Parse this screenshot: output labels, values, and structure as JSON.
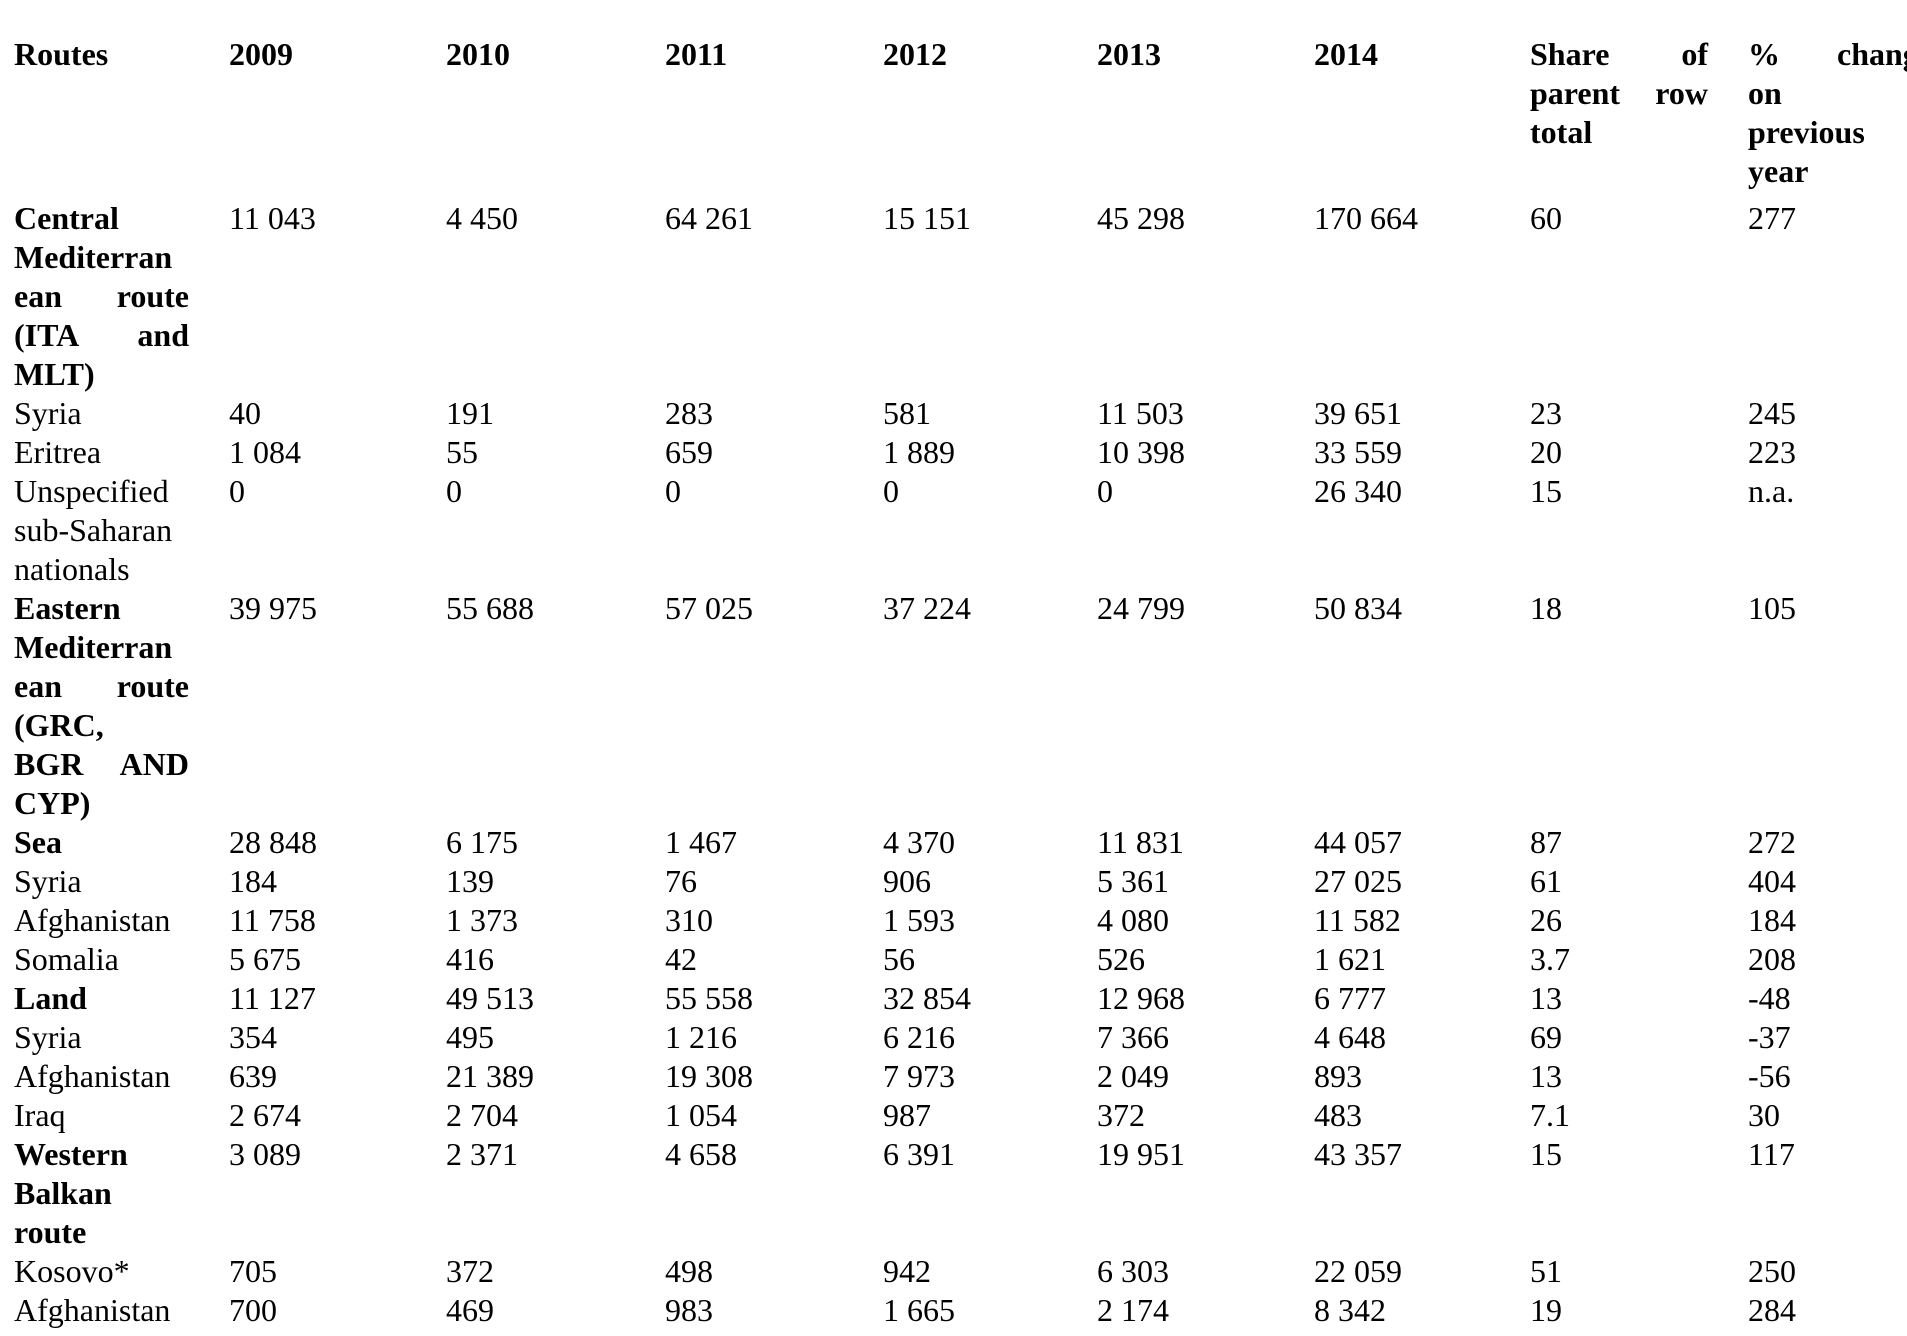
{
  "page": {
    "background_color": "#ffffff",
    "text_color": "#000000"
  },
  "table": {
    "columns": [
      "Routes",
      "2009",
      "2010",
      "2011",
      "2012",
      "2013",
      "2014",
      "Share of\nparent row\ntotal",
      "% change\non\nprevious\nyear"
    ],
    "rows": [
      {
        "route": "Central\nMediterran\nean route\n(ITA and\nMLT)",
        "bold": true,
        "values": [
          "11 043",
          "4 450",
          "64 261",
          "15 151",
          "45 298",
          "170 664",
          "60",
          "277"
        ]
      },
      {
        "route": "Syria",
        "bold": false,
        "values": [
          "40",
          "191",
          "283",
          "581",
          "11 503",
          "39 651",
          "23",
          "245"
        ]
      },
      {
        "route": "Eritrea",
        "bold": false,
        "values": [
          "1 084",
          "55",
          "659",
          "1 889",
          "10 398",
          "33 559",
          "20",
          "223"
        ]
      },
      {
        "route": "Unspecified\nsub-Saharan\nnationals",
        "bold": false,
        "values": [
          "0",
          "0",
          "0",
          "0",
          "0",
          "26 340",
          "15",
          "n.a."
        ]
      },
      {
        "route": "Eastern\nMediterran\nean route\n(GRC,\nBGR AND\nCYP)",
        "bold": true,
        "values": [
          "39 975",
          "55 688",
          "57 025",
          "37 224",
          "24 799",
          "50 834",
          "18",
          "105"
        ]
      },
      {
        "route": "Sea",
        "bold": true,
        "values": [
          "28 848",
          "6 175",
          "1 467",
          "4 370",
          "11 831",
          "44 057",
          "87",
          "272"
        ]
      },
      {
        "route": "Syria",
        "bold": false,
        "values": [
          "184",
          "139",
          "76",
          "906",
          "5 361",
          "27 025",
          "61",
          "404"
        ]
      },
      {
        "route": "Afghanistan",
        "bold": false,
        "values": [
          "11 758",
          "1 373",
          "310",
          "1 593",
          "4 080",
          "11 582",
          "26",
          "184"
        ]
      },
      {
        "route": "Somalia",
        "bold": false,
        "values": [
          "5 675",
          "416",
          "42",
          "56",
          "526",
          "1 621",
          "3.7",
          "208"
        ]
      },
      {
        "route": "Land",
        "bold": true,
        "values": [
          "11 127",
          "49 513",
          "55 558",
          "32 854",
          "12 968",
          "6 777",
          "13",
          "-48"
        ]
      },
      {
        "route": "Syria",
        "bold": false,
        "values": [
          "354",
          "495",
          "1 216",
          "6 216",
          "7 366",
          "4 648",
          "69",
          "-37"
        ]
      },
      {
        "route": "Afghanistan",
        "bold": false,
        "values": [
          "639",
          "21 389",
          "19 308",
          "7 973",
          "2 049",
          "893",
          "13",
          "-56"
        ]
      },
      {
        "route": "Iraq",
        "bold": false,
        "values": [
          "2 674",
          "2 704",
          "1 054",
          "987",
          "372",
          "483",
          "7.1",
          "30"
        ]
      },
      {
        "route": "Western\nBalkan\nroute",
        "bold": true,
        "values": [
          "3 089",
          "2 371",
          "4 658",
          "6 391",
          "19 951",
          "43 357",
          "15",
          "117"
        ]
      },
      {
        "route": "Kosovo*",
        "bold": false,
        "values": [
          "705",
          "372",
          "498",
          "942",
          "6 303",
          "22 059",
          "51",
          "250"
        ]
      },
      {
        "route": "Afghanistan",
        "bold": false,
        "values": [
          "700",
          "469",
          "983",
          "1 665",
          "2 174",
          "8 342",
          "19",
          "284"
        ]
      }
    ]
  }
}
